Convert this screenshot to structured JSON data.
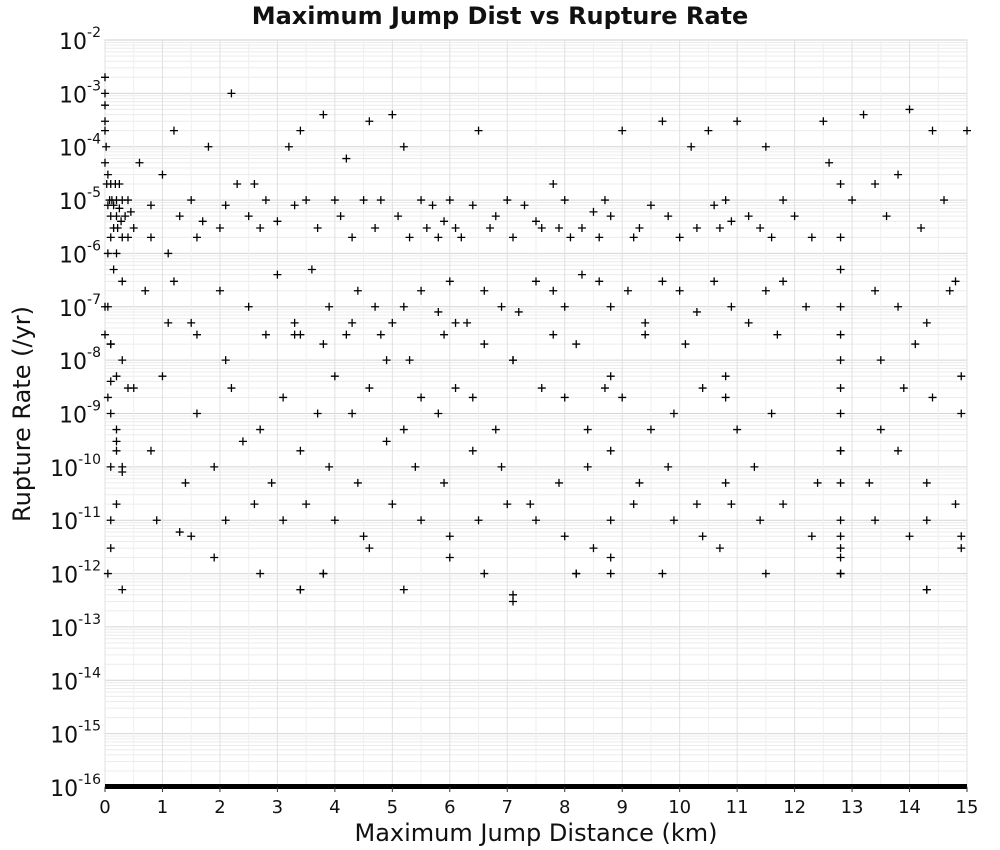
{
  "chart_data": {
    "type": "scatter",
    "title": "Maximum Jump Dist vs Rupture Rate",
    "xlabel": "Maximum Jump Distance (km)",
    "ylabel": "Rupture Rate (/yr)",
    "xlim": [
      0,
      15
    ],
    "ylim": [
      1e-16,
      0.01
    ],
    "yscale": "log",
    "x_ticks": [
      "0",
      "1",
      "2",
      "3",
      "4",
      "5",
      "6",
      "7",
      "8",
      "9",
      "10",
      "11",
      "12",
      "13",
      "14",
      "15"
    ],
    "y_tick_exponents": [
      "-2",
      "-3",
      "-4",
      "-5",
      "-6",
      "-7",
      "-8",
      "-9",
      "-10",
      "-11",
      "-12",
      "-13",
      "-14",
      "-15",
      "-16"
    ],
    "y_tick_base": "10",
    "grid": true,
    "marker": "+",
    "marker_color": "#000000",
    "series": [
      {
        "x": [
          0.0,
          0.0,
          0.0,
          0.02,
          0.03,
          0.05,
          0.05,
          0.08,
          0.1,
          0.1,
          0.12,
          0.15,
          0.15,
          0.18,
          0.2,
          0.2,
          0.22,
          0.25,
          0.25,
          0.28,
          0.3,
          0.3,
          0.35,
          0.4,
          0.4,
          0.45,
          0.5,
          0.05,
          0.1,
          0.15,
          0.2,
          0.3,
          0.05,
          0.1,
          0.2,
          0.3,
          0.4,
          0.1,
          0.2,
          0.0,
          0.0,
          0.0,
          0.0,
          0.05,
          0.1,
          0.1,
          0.2,
          0.0,
          0.1,
          0.2,
          0.3,
          0.05,
          0.1,
          0.6,
          0.8,
          0.8,
          1.0,
          1.1,
          1.2,
          1.3,
          1.5,
          1.6,
          1.7,
          1.8,
          2.0,
          2.1,
          2.2,
          2.3,
          2.5,
          2.6,
          2.7,
          2.8,
          3.0,
          3.2,
          3.3,
          3.4,
          3.5,
          3.7,
          3.8,
          4.0,
          4.1,
          4.2,
          4.3,
          4.5,
          4.6,
          4.7,
          4.8,
          5.0,
          5.1,
          5.2,
          5.3,
          5.5,
          5.6,
          5.7,
          5.8,
          5.9,
          6.0,
          6.1,
          6.2,
          6.4,
          6.5,
          6.7,
          6.8,
          7.0,
          7.1,
          7.3,
          7.5,
          7.6,
          7.8,
          7.9,
          8.0,
          8.1,
          8.3,
          8.5,
          8.6,
          8.7,
          8.8,
          9.0,
          9.2,
          9.3,
          9.5,
          9.7,
          9.8,
          10.0,
          10.2,
          10.3,
          10.5,
          10.6,
          10.7,
          10.8,
          10.9,
          11.0,
          11.2,
          11.4,
          11.5,
          11.6,
          11.8,
          12.0,
          12.3,
          12.5,
          12.6,
          12.8,
          13.0,
          13.2,
          13.4,
          13.6,
          13.8,
          14.0,
          14.2,
          14.4,
          14.6,
          14.8,
          15.0,
          0.7,
          1.2,
          1.5,
          2.0,
          2.5,
          3.0,
          3.3,
          3.6,
          3.9,
          4.2,
          4.4,
          4.7,
          5.0,
          5.2,
          5.5,
          5.8,
          6.0,
          6.3,
          6.6,
          6.9,
          7.2,
          7.5,
          7.8,
          8.0,
          8.3,
          8.6,
          8.8,
          9.1,
          9.4,
          9.7,
          10.0,
          10.3,
          10.6,
          10.9,
          11.2,
          11.5,
          11.8,
          12.2,
          12.8,
          12.8,
          12.8,
          13.4,
          13.8,
          14.3,
          14.7,
          0.5,
          1.0,
          1.6,
          2.2,
          2.7,
          3.1,
          3.4,
          3.7,
          4.0,
          4.3,
          4.6,
          4.9,
          5.2,
          5.5,
          5.8,
          6.1,
          6.4,
          6.8,
          7.1,
          7.6,
          8.0,
          8.4,
          8.7,
          9.0,
          9.5,
          9.9,
          10.4,
          10.8,
          11.0,
          11.6,
          12.8,
          12.8,
          13.5,
          13.9,
          14.4,
          14.9,
          0.3,
          0.8,
          1.4,
          1.9,
          2.4,
          2.9,
          3.4,
          3.9,
          4.4,
          4.9,
          5.4,
          5.9,
          6.4,
          6.9,
          7.4,
          7.9,
          8.4,
          8.8,
          9.3,
          9.8,
          10.3,
          10.8,
          11.3,
          11.8,
          12.4,
          12.8,
          12.8,
          12.8,
          13.3,
          13.8,
          14.3,
          14.8,
          0.2,
          0.9,
          1.5,
          2.1,
          2.6,
          3.1,
          3.5,
          4.0,
          4.5,
          5.0,
          5.5,
          6.0,
          6.5,
          7.0,
          7.5,
          8.0,
          8.5,
          8.8,
          9.2,
          9.9,
          10.4,
          10.9,
          11.4,
          12.3,
          12.8,
          12.8,
          12.8,
          13.4,
          14.0,
          14.3,
          14.9,
          0.1,
          1.1,
          1.6,
          2.1,
          2.8,
          3.3,
          3.8,
          4.3,
          4.8,
          5.3,
          5.9,
          6.1,
          6.6,
          7.1,
          7.8,
          8.2,
          8.8,
          9.4,
          10.1,
          10.8,
          11.7,
          12.8,
          12.8,
          13.5,
          14.1,
          14.9,
          0.3,
          1.3,
          1.9,
          2.7,
          3.4,
          3.8,
          4.6,
          5.2,
          6.0,
          6.6,
          7.1,
          8.2,
          8.8,
          9.7,
          10.7,
          11.5,
          12.8,
          12.8,
          14.3,
          14.9,
          3.4,
          3.8,
          7.1,
          8.2,
          8.8,
          12.8,
          14.3
        ],
        "y": [
          0.0006,
          0.0002,
          5e-05,
          0.0001,
          2e-05,
          8e-06,
          3e-05,
          1e-05,
          5e-06,
          2e-05,
          1e-05,
          3e-06,
          8e-06,
          2e-05,
          5e-06,
          1e-05,
          3e-06,
          7e-06,
          2e-05,
          4e-06,
          1e-05,
          2e-06,
          5e-06,
          1e-05,
          2e-06,
          6e-06,
          3e-06,
          1e-06,
          2e-06,
          5e-07,
          1e-06,
          3e-07,
          1e-07,
          2e-08,
          5e-09,
          1e-08,
          3e-09,
          1e-09,
          5e-10,
          0.002,
          0.001,
          0.0003,
          3e-08,
          2e-09,
          1e-10,
          1e-11,
          3e-10,
          1e-07,
          4e-09,
          2e-10,
          8e-11,
          1e-12,
          3e-12,
          5e-05,
          2e-06,
          8e-06,
          3e-05,
          1e-06,
          0.0002,
          5e-06,
          1e-05,
          2e-06,
          4e-06,
          0.0001,
          3e-06,
          8e-06,
          0.001,
          2e-05,
          5e-06,
          2e-05,
          3e-06,
          1e-05,
          4e-06,
          0.0001,
          8e-06,
          0.0002,
          1e-05,
          3e-06,
          0.0004,
          1e-05,
          5e-06,
          6e-05,
          2e-06,
          1e-05,
          0.0003,
          3e-06,
          1e-05,
          0.0004,
          5e-06,
          0.0001,
          2e-06,
          1e-05,
          3e-06,
          8e-06,
          2e-06,
          4e-06,
          1e-05,
          3e-06,
          2e-06,
          8e-06,
          0.0002,
          3e-06,
          5e-06,
          1e-05,
          2e-06,
          8e-06,
          4e-06,
          3e-06,
          2e-05,
          3e-06,
          1e-05,
          2e-06,
          3e-06,
          6e-06,
          2e-06,
          1e-05,
          5e-06,
          0.0002,
          2e-06,
          3e-06,
          8e-06,
          0.0003,
          5e-06,
          2e-06,
          0.0001,
          3e-06,
          0.0002,
          8e-06,
          3e-06,
          1e-05,
          4e-06,
          0.0003,
          5e-06,
          3e-06,
          0.0001,
          2e-06,
          1e-05,
          5e-06,
          2e-06,
          0.0003,
          5e-05,
          2e-05,
          1e-05,
          0.0004,
          2e-05,
          5e-06,
          3e-05,
          0.0005,
          3e-06,
          0.0002,
          1e-05,
          3e-07,
          0.0002,
          2e-07,
          3e-07,
          5e-08,
          2e-07,
          1e-07,
          4e-07,
          3e-08,
          5e-07,
          1e-07,
          3e-08,
          2e-07,
          1e-07,
          5e-08,
          1e-07,
          2e-07,
          8e-08,
          3e-07,
          5e-08,
          2e-07,
          1e-07,
          8e-08,
          3e-07,
          2e-07,
          1e-07,
          4e-07,
          3e-07,
          1e-07,
          2e-07,
          5e-08,
          3e-07,
          2e-07,
          8e-08,
          3e-07,
          1e-07,
          5e-08,
          2e-07,
          3e-07,
          1e-07,
          2e-06,
          5e-07,
          1e-07,
          2e-07,
          1e-07,
          5e-08,
          2e-07,
          3e-09,
          5e-09,
          1e-09,
          3e-09,
          5e-10,
          2e-09,
          3e-08,
          1e-09,
          5e-09,
          1e-09,
          3e-09,
          1e-08,
          5e-10,
          2e-09,
          1e-09,
          3e-09,
          2e-09,
          5e-10,
          1e-08,
          3e-09,
          2e-09,
          5e-10,
          3e-09,
          2e-09,
          5e-10,
          1e-09,
          3e-09,
          2e-09,
          5e-10,
          1e-09,
          3e-09,
          2e-10,
          5e-10,
          3e-09,
          2e-09,
          1e-09,
          1e-10,
          2e-10,
          5e-11,
          1e-10,
          3e-10,
          5e-11,
          2e-10,
          1e-10,
          5e-11,
          3e-10,
          1e-10,
          5e-11,
          2e-10,
          1e-10,
          2e-11,
          5e-11,
          1e-10,
          2e-10,
          5e-11,
          1e-10,
          2e-11,
          5e-11,
          1e-10,
          2e-11,
          5e-11,
          5e-11,
          2e-10,
          1e-09,
          5e-11,
          2e-10,
          5e-11,
          2e-11,
          2e-11,
          1e-11,
          5e-12,
          1e-11,
          2e-11,
          1e-11,
          2e-11,
          1e-11,
          5e-12,
          2e-11,
          1e-11,
          5e-12,
          1e-11,
          2e-11,
          1e-11,
          5e-12,
          3e-12,
          1e-11,
          2e-11,
          1e-11,
          5e-12,
          2e-11,
          1e-11,
          5e-12,
          3e-12,
          1e-11,
          5e-12,
          1e-11,
          5e-12,
          1e-11,
          5e-12,
          2e-08,
          5e-08,
          3e-08,
          1e-08,
          3e-08,
          5e-08,
          2e-08,
          5e-08,
          3e-08,
          1e-08,
          3e-08,
          5e-08,
          2e-08,
          1e-08,
          3e-08,
          2e-08,
          5e-09,
          3e-08,
          2e-08,
          5e-09,
          3e-08,
          1e-08,
          3e-08,
          1e-08,
          2e-08,
          5e-09,
          5e-13,
          6e-12,
          2e-12,
          1e-12,
          5e-13,
          1e-12,
          3e-12,
          5e-13,
          2e-12,
          1e-12,
          3e-13,
          1e-12,
          2e-12,
          1e-12,
          3e-12,
          1e-12,
          2e-12,
          1e-12,
          5e-13,
          3e-12,
          5e-13,
          1e-12,
          4e-13,
          1e-12,
          1e-12,
          1e-12,
          5e-13
        ],
        "floor_band": {
          "y": 1e-16,
          "x_range": [
            0,
            15
          ],
          "dense": true
        }
      }
    ]
  }
}
